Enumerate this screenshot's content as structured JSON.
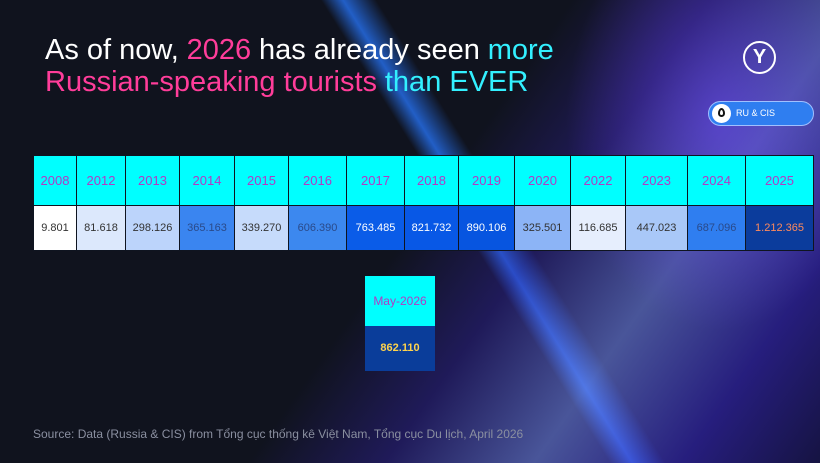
{
  "logo": "Y",
  "title": {
    "line1": [
      {
        "text": "As of now,",
        "color": "#ffffff"
      },
      {
        "text": "2026",
        "color": "#ff3d9a"
      },
      {
        "text": "has already seen",
        "color": "#ffffff"
      },
      {
        "text": "more",
        "color": "#33f0ff"
      }
    ],
    "line2": [
      {
        "text": "Russian-speaking tourists",
        "color": "#ff3d9a"
      },
      {
        "text": "than EVER",
        "color": "#33f0ff"
      }
    ]
  },
  "badge": "RU & CIS",
  "table": {
    "headers": [
      "2008",
      "2012",
      "2013",
      "2014",
      "2015",
      "2016",
      "2017",
      "2018",
      "2019",
      "2020",
      "2022",
      "2023",
      "2024",
      "2025"
    ],
    "values": [
      "9.801",
      "81.618",
      "298.126",
      "365.163",
      "339.270",
      "606.390",
      "763.485",
      "821.732",
      "890.106",
      "325.501",
      "116.685",
      "447.023",
      "687.096",
      "1.212.365"
    ],
    "cell_colors": [
      "#ffffff",
      "#dce8fc",
      "#bcd4fb",
      "#3a85f0",
      "#c6dbfb",
      "#3c88ef",
      "#0a5ce8",
      "#0858e6",
      "#0755e0",
      "#8cb4f6",
      "#e6eefd",
      "#a9c8f8",
      "#2f7ef0",
      "#0b3c9c"
    ],
    "text_colors": [
      "#333333",
      "#333333",
      "#333333",
      "#2a4a8a",
      "#333333",
      "#2a4a8a",
      "#ffffff",
      "#ffffff",
      "#ffffff",
      "#333333",
      "#333333",
      "#333333",
      "#2a4a8a",
      "#ff8a5c"
    ]
  },
  "highlight": {
    "header": "May-2026",
    "value": "862.110"
  },
  "source": "Source: Data (Russia & CIS) from Tổng cục thống kê Việt Nam, Tổng cục Du lịch, April 2026"
}
